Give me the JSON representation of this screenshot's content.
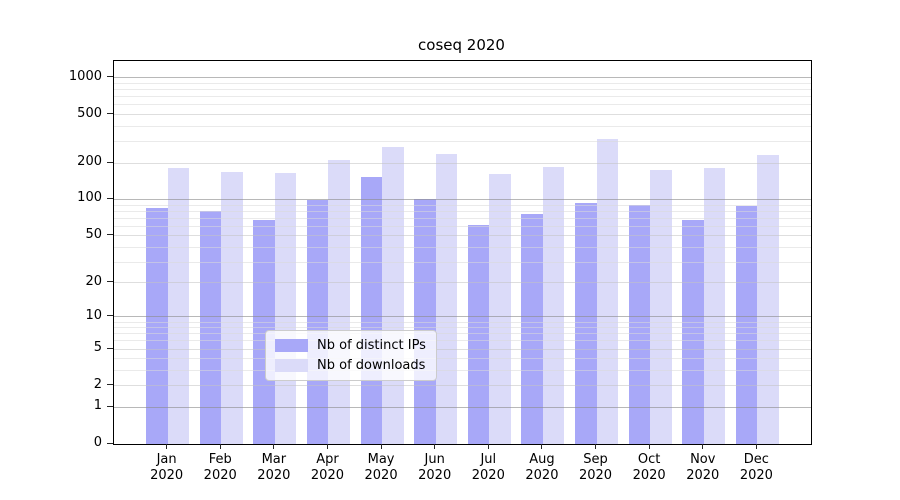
{
  "chart_data": {
    "type": "bar",
    "title": "coseq 2020",
    "categories": [
      "Jan",
      "Feb",
      "Mar",
      "Apr",
      "May",
      "Jun",
      "Jul",
      "Aug",
      "Sep",
      "Oct",
      "Nov",
      "Dec"
    ],
    "category_year": "2020",
    "series": [
      {
        "name": "Nb of distinct IPs",
        "color": "#a8a8f8",
        "values": [
          85,
          81,
          67,
          99,
          154,
          101,
          61,
          76,
          93,
          90,
          68,
          89
        ]
      },
      {
        "name": "Nb of downloads",
        "color": "#dbdbf9",
        "values": [
          183,
          170,
          167,
          212,
          272,
          236,
          161,
          186,
          315,
          176,
          183,
          233
        ]
      }
    ],
    "yticks": [
      0,
      1,
      2,
      5,
      10,
      20,
      50,
      100,
      200,
      500,
      1000
    ],
    "yscale": "log1p",
    "ylim": [
      0,
      1380
    ],
    "grid": "horizontal",
    "legend_position": "inside-bottom-center",
    "colors": {
      "grid_major": "#b0b0b0",
      "grid_mid": "#dcdcdc",
      "grid_minor": "#ebebeb",
      "axis": "#000000",
      "legend_border": "#cccccc"
    }
  }
}
